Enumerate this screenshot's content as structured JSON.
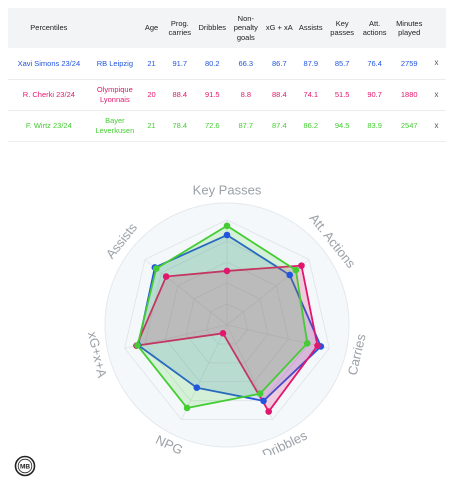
{
  "table": {
    "headers": [
      "Percentiles",
      "",
      "Age",
      "Prog. carries",
      "Dribbles",
      "Non-penalty goals",
      "xG + xA",
      "Assists",
      "Key passes",
      "Att. actions",
      "Minutes played",
      ""
    ],
    "rows": [
      {
        "player": "Xavi Simons 23/24",
        "team": "RB Leipzig",
        "age": "21",
        "prog_carries": "91.7",
        "dribbles": "80.2",
        "npg": "66.3",
        "xg_xa": "86.7",
        "assists": "87.9",
        "key_passes": "85.7",
        "att_actions": "76.4",
        "minutes": "2759",
        "remove": "x",
        "color": "#2255dd"
      },
      {
        "player": "R. Cherki 23/24",
        "team": "Olympique Lyonnais",
        "age": "20",
        "prog_carries": "88.4",
        "dribbles": "91.5",
        "npg": "8.8",
        "xg_xa": "88.4",
        "assists": "74.1",
        "key_passes": "51.5",
        "att_actions": "90.7",
        "minutes": "1880",
        "remove": "x",
        "color": "#e0176d"
      },
      {
        "player": "F. Wirtz 23/24",
        "team": "Bayer Leverkusen",
        "age": "21",
        "prog_carries": "78.4",
        "dribbles": "72.6",
        "npg": "87.7",
        "xg_xa": "87.4",
        "assists": "86.2",
        "key_passes": "94.5",
        "att_actions": "83.9",
        "minutes": "2547",
        "remove": "x",
        "color": "#44cc33"
      }
    ]
  },
  "chart_data": {
    "type": "radar",
    "axes": [
      "Key Passes",
      "Att. Actions",
      "Carries",
      "Dribbles",
      "NPG",
      "xG+x+A",
      "Assists"
    ],
    "range": [
      0,
      100
    ],
    "grid": true,
    "series": [
      {
        "name": "Xavi Simons 23/24",
        "color": "#2255dd",
        "fill": "rgba(34,85,221,0.15)",
        "values": [
          85.7,
          76.4,
          91.7,
          80.2,
          66.3,
          86.7,
          87.9
        ]
      },
      {
        "name": "R. Cherki 23/24",
        "color": "#e0176d",
        "fill": "rgba(224,23,109,0.20)",
        "values": [
          51.5,
          90.7,
          88.4,
          91.5,
          8.8,
          88.4,
          74.1
        ]
      },
      {
        "name": "F. Wirtz 23/24",
        "color": "#44cc33",
        "fill": "rgba(68,204,51,0.18)",
        "values": [
          94.5,
          83.9,
          78.4,
          72.6,
          87.7,
          87.4,
          86.2
        ]
      }
    ]
  },
  "logo": {
    "text": "MB"
  }
}
